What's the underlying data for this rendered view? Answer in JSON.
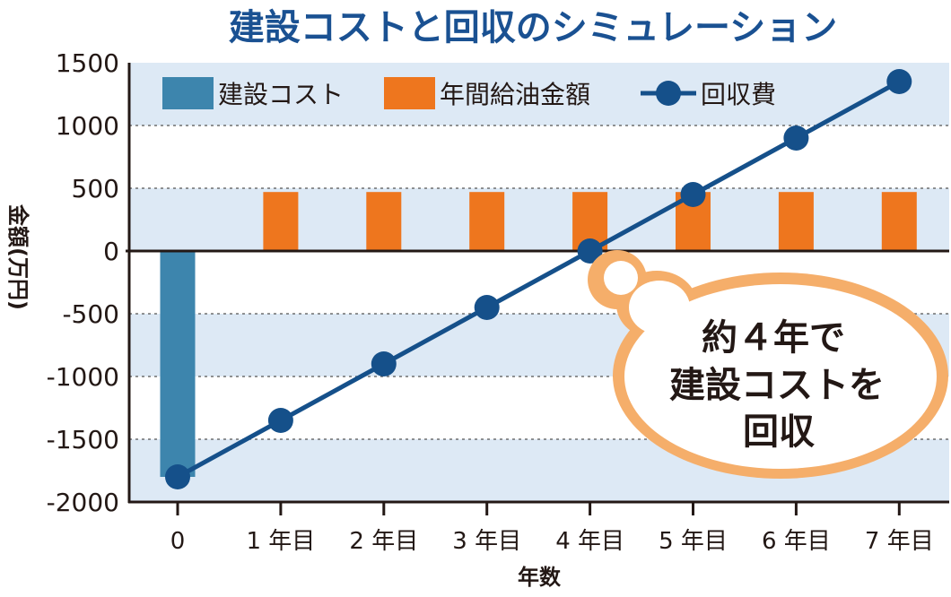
{
  "chart_data": {
    "type": "bar",
    "title": "建設コストと回収のシミュレーション",
    "xlabel": "年数",
    "ylabel": "金額(万円)",
    "ylim": [
      -2000,
      1500
    ],
    "yticks": [
      1500,
      1000,
      500,
      0,
      -500,
      -1000,
      -1500,
      -2000
    ],
    "ytick_labels": [
      "1500",
      "1000",
      "500",
      "0",
      "-500",
      "-1000",
      "-1500",
      "-2000"
    ],
    "grid": true,
    "legend_position": "top-left",
    "categories": [
      "0",
      "1 年目",
      "2 年目",
      "3 年目",
      "4 年目",
      "5 年目",
      "6 年目",
      "7 年目"
    ],
    "series": [
      {
        "name": "建設コスト",
        "type": "bar",
        "color": "#3d85ad",
        "values": [
          -1800,
          null,
          null,
          null,
          null,
          null,
          null,
          null
        ]
      },
      {
        "name": "年間給油金額",
        "type": "bar",
        "color": "#ee761e",
        "values": [
          null,
          470,
          470,
          470,
          470,
          470,
          470,
          470
        ]
      },
      {
        "name": "回収費",
        "type": "line",
        "color": "#15508a",
        "values": [
          -1800,
          -1350,
          -900,
          -450,
          0,
          450,
          900,
          1350
        ]
      }
    ],
    "annotation": {
      "lines": [
        "約４年で",
        "建設コストを",
        "回収"
      ],
      "color": "#f5ae6a"
    },
    "band_color": "#dde9f5",
    "title_color": "#1a5192"
  }
}
